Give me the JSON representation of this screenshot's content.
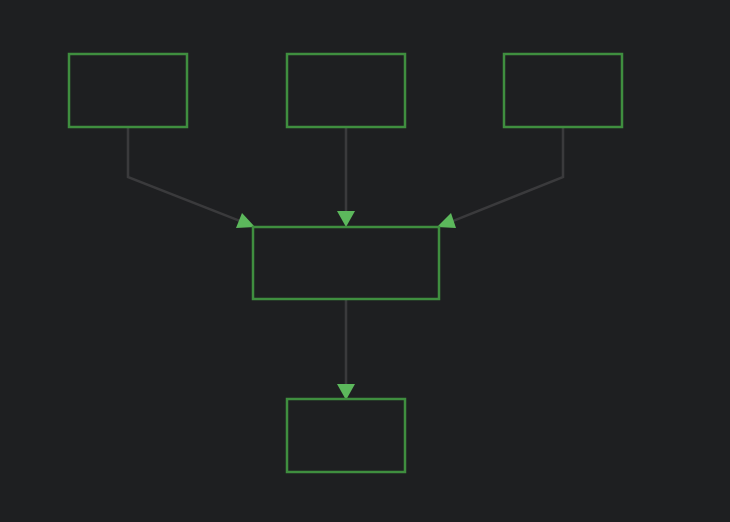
{
  "diagram": {
    "type": "flowchart",
    "colors": {
      "background": "#1e1f21",
      "node_border": "#3f8e3f",
      "edge_line": "#3a3a3c",
      "arrowhead": "#5cb85c"
    },
    "nodes": [
      {
        "id": "top-left",
        "label": ""
      },
      {
        "id": "top-center",
        "label": ""
      },
      {
        "id": "top-right",
        "label": ""
      },
      {
        "id": "middle",
        "label": ""
      },
      {
        "id": "bottom",
        "label": ""
      }
    ],
    "edges": [
      {
        "from": "top-left",
        "to": "middle"
      },
      {
        "from": "top-center",
        "to": "middle"
      },
      {
        "from": "top-right",
        "to": "middle"
      },
      {
        "from": "middle",
        "to": "bottom"
      }
    ]
  }
}
